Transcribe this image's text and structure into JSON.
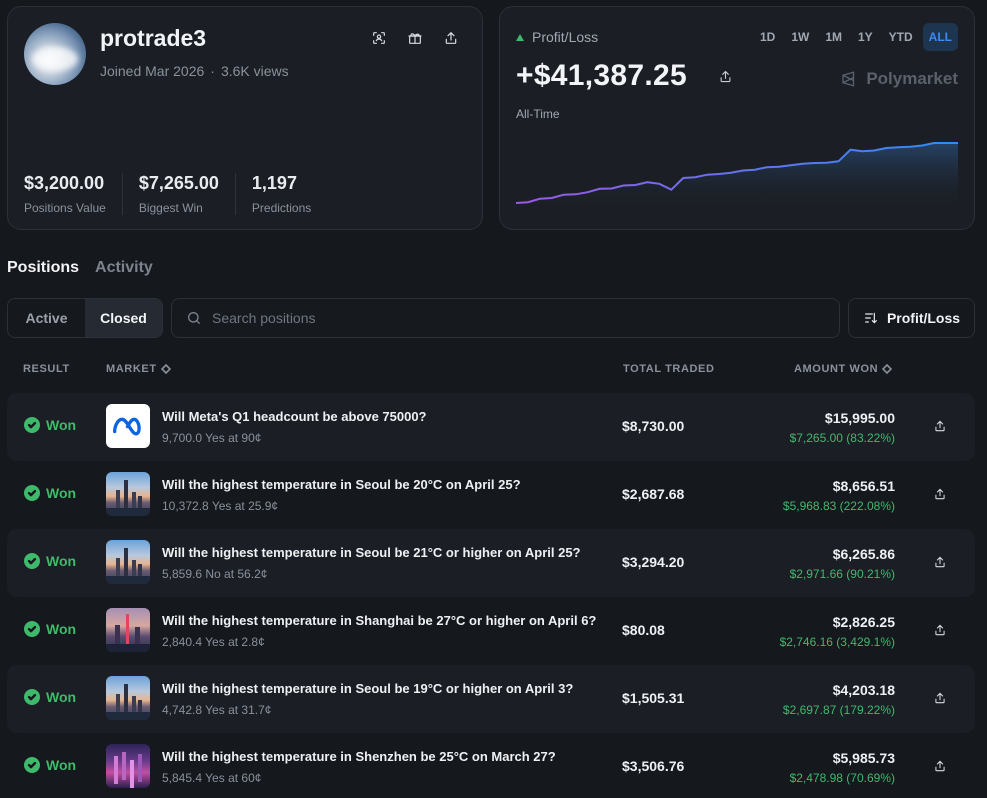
{
  "profile": {
    "username": "protrade3",
    "joined": "Joined Mar 2026",
    "views": "3.6K views",
    "stats": [
      {
        "value": "$3,200.00",
        "label": "Positions Value"
      },
      {
        "value": "$7,265.00",
        "label": "Biggest Win"
      },
      {
        "value": "1,197",
        "label": "Predictions"
      }
    ]
  },
  "pnl": {
    "label": "Profit/Loss",
    "value": "+$41,387.25",
    "period": "All-Time",
    "brand": "Polymarket",
    "timeframes": [
      "1D",
      "1W",
      "1M",
      "1Y",
      "YTD",
      "ALL"
    ],
    "active_timeframe": "ALL"
  },
  "chart_data": {
    "type": "area",
    "values": [
      0,
      0.5,
      2.5,
      3,
      5,
      5.2,
      6.5,
      8.5,
      8.7,
      10.5,
      10.8,
      12.5,
      11.5,
      8,
      15,
      15.5,
      17,
      17.4,
      18.2,
      19.5,
      20,
      21.5,
      21.8,
      22.6,
      23.5,
      24,
      24.2,
      25,
      32,
      31,
      31.5,
      33,
      33.4,
      33.8,
      34.5,
      36,
      36,
      36
    ]
  },
  "tabs": [
    "Positions",
    "Activity"
  ],
  "active_tab": "Positions",
  "filters": {
    "segments": [
      "Active",
      "Closed"
    ],
    "active": "Closed"
  },
  "search": {
    "placeholder": "Search positions",
    "value": ""
  },
  "sort": {
    "label": "Profit/Loss"
  },
  "table": {
    "headers": {
      "result": "RESULT",
      "market": "MARKET",
      "traded": "TOTAL TRADED",
      "won": "AMOUNT WON"
    },
    "rows": [
      {
        "result": "Won",
        "thumb": "meta",
        "title": "Will Meta's Q1 headcount be above 75000?",
        "subtitle": "9,700.0 Yes at 90¢",
        "traded": "$8,730.00",
        "won": "$15,995.00",
        "gain": "$7,265.00 (83.22%)"
      },
      {
        "result": "Won",
        "thumb": "city",
        "title": "Will the highest temperature in Seoul be 20°C on April 25?",
        "subtitle": "10,372.8 Yes at 25.9¢",
        "traded": "$2,687.68",
        "won": "$8,656.51",
        "gain": "$5,968.83 (222.08%)"
      },
      {
        "result": "Won",
        "thumb": "city",
        "title": "Will the highest temperature in Seoul be 21°C or higher on April 25?",
        "subtitle": "5,859.6 No at 56.2¢",
        "traded": "$3,294.20",
        "won": "$6,265.86",
        "gain": "$2,971.66 (90.21%)"
      },
      {
        "result": "Won",
        "thumb": "shanghai",
        "title": "Will the highest temperature in Shanghai be 27°C or higher on April 6?",
        "subtitle": "2,840.4 Yes at 2.8¢",
        "traded": "$80.08",
        "won": "$2,826.25",
        "gain": "$2,746.16 (3,429.1%)"
      },
      {
        "result": "Won",
        "thumb": "city",
        "title": "Will the highest temperature in Seoul be 19°C or higher on April 3?",
        "subtitle": "4,742.8 Yes at 31.7¢",
        "traded": "$1,505.31",
        "won": "$4,203.18",
        "gain": "$2,697.87 (179.22%)"
      },
      {
        "result": "Won",
        "thumb": "shenzhen",
        "title": "Will the highest temperature in Shenzhen be 25°C on March 27?",
        "subtitle": "5,845.4 Yes at 60¢",
        "traded": "$3,506.76",
        "won": "$5,985.73",
        "gain": "$2,478.98 (70.69%)"
      }
    ]
  },
  "colors": {
    "accent": "#3b8cf0",
    "positive": "#3fb96c",
    "background": "#15181d",
    "card": "#1b1f25"
  },
  "icons": {
    "header": [
      "scan-icon",
      "gift-icon",
      "share-icon"
    ],
    "row_action": "share-icon",
    "check": "check-circle-icon",
    "search": "search-icon",
    "sort": "sort-icon"
  }
}
